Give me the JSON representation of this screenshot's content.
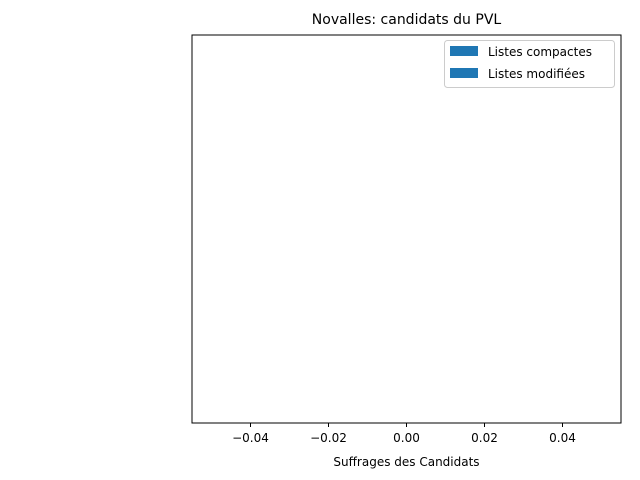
{
  "chart_data": {
    "type": "bar",
    "orientation": "horizontal",
    "title": "Novalles: candidats du PVL",
    "xlabel": "Suffrages des Candidats",
    "ylabel": "",
    "categories": [],
    "series": [
      {
        "name": "Listes compactes",
        "values": [],
        "color": "#1f77b4"
      },
      {
        "name": "Listes modifiées",
        "values": [],
        "color": "#1f77b4"
      }
    ],
    "xlim": [
      -0.055,
      0.055
    ],
    "xticks": [
      -0.04,
      -0.02,
      0.0,
      0.02,
      0.04
    ],
    "xtick_labels": [
      "−0.04",
      "−0.02",
      "0.00",
      "0.02",
      "0.04"
    ],
    "grid": false,
    "legend_position": "top-right"
  }
}
